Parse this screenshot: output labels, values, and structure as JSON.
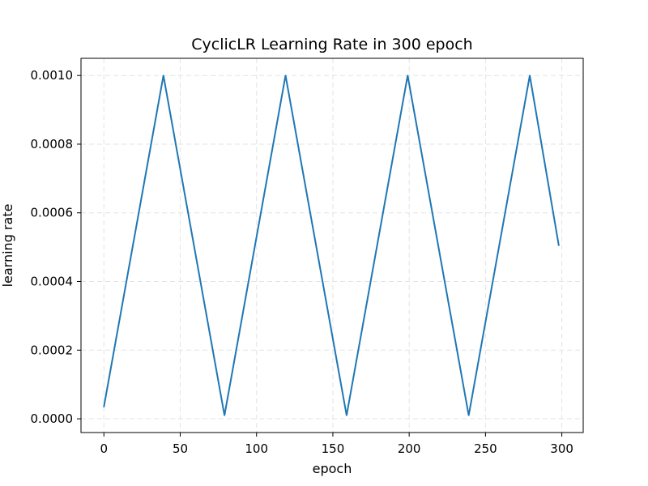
{
  "chart_data": {
    "type": "line",
    "title": "CyclicLR Learning Rate in 300 epoch",
    "xlabel": "epoch",
    "ylabel": "learning rate",
    "xlim": [
      -15.0,
      314.0
    ],
    "ylim": [
      -4e-05,
      0.00105
    ],
    "xticks": [
      0,
      50,
      100,
      150,
      200,
      250,
      300
    ],
    "yticks": [
      "0.0000",
      "0.0002",
      "0.0004",
      "0.0006",
      "0.0008",
      "0.0010"
    ],
    "ytick_values": [
      0.0,
      0.0002,
      0.0004,
      0.0006,
      0.0008,
      0.001
    ],
    "grid": true,
    "series": [
      {
        "color": "#1f77b4",
        "x": [
          0,
          39,
          79,
          119,
          159,
          199,
          239,
          279,
          298
        ],
        "y": [
          3.5e-05,
          0.001,
          1e-05,
          0.001,
          1e-05,
          0.001,
          1e-05,
          0.001,
          0.000505
        ]
      }
    ]
  }
}
